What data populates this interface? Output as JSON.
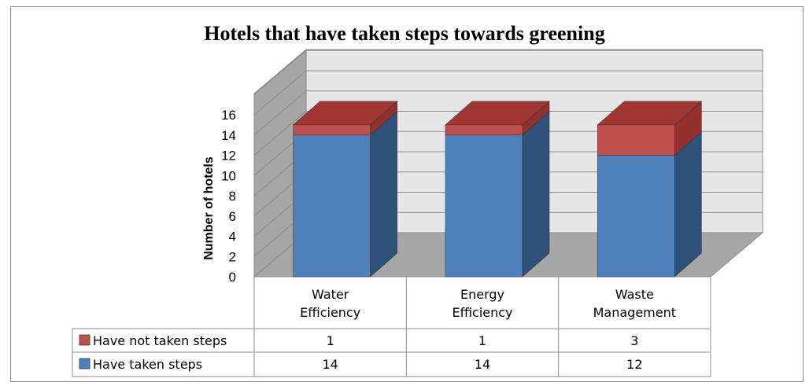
{
  "chart_data": {
    "type": "bar",
    "stacked": true,
    "three_d": true,
    "title": "Hotels that have taken steps towards greening",
    "ylabel": "Number of hotels",
    "xlabel": "",
    "ylim": [
      0,
      16
    ],
    "yticks": [
      "0",
      "2",
      "4",
      "6",
      "8",
      "10",
      "12",
      "14",
      "16"
    ],
    "categories": [
      [
        "Water",
        "Efficiency"
      ],
      [
        "Energy",
        "Efficiency"
      ],
      [
        "Waste",
        "Management"
      ]
    ],
    "series": [
      {
        "name": "Have taken steps",
        "values": [
          14,
          14,
          12
        ],
        "color": "#4f81bd"
      },
      {
        "name": "Have not taken steps",
        "values": [
          1,
          1,
          3
        ],
        "color": "#c0504d"
      }
    ],
    "data_table": true,
    "grid": true
  }
}
